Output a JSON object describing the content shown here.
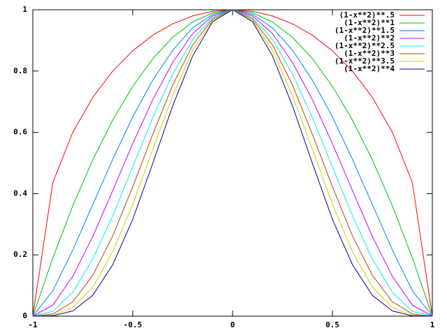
{
  "chart_data": {
    "type": "line",
    "x": [
      -1,
      -0.9,
      -0.8,
      -0.7,
      -0.6,
      -0.5,
      -0.4,
      -0.3,
      -0.2,
      -0.1,
      0,
      0.1,
      0.2,
      0.3,
      0.4,
      0.5,
      0.6,
      0.7,
      0.8,
      0.9,
      1
    ],
    "series": [
      {
        "name": "(1-x**2)**.5",
        "color": "#ff0000",
        "values": [
          0,
          0.436,
          0.6,
          0.714,
          0.8,
          0.866,
          0.917,
          0.954,
          0.98,
          0.995,
          1,
          0.995,
          0.98,
          0.954,
          0.917,
          0.866,
          0.8,
          0.714,
          0.6,
          0.436,
          0
        ]
      },
      {
        "name": "(1-x**2)**1",
        "color": "#00c000",
        "values": [
          0,
          0.19,
          0.36,
          0.51,
          0.64,
          0.75,
          0.84,
          0.91,
          0.96,
          0.99,
          1,
          0.99,
          0.96,
          0.91,
          0.84,
          0.75,
          0.64,
          0.51,
          0.36,
          0.19,
          0
        ]
      },
      {
        "name": "(1-x**2)**1.5",
        "color": "#0080ff",
        "values": [
          0,
          0.083,
          0.216,
          0.364,
          0.512,
          0.65,
          0.77,
          0.868,
          0.941,
          0.985,
          1,
          0.985,
          0.941,
          0.868,
          0.77,
          0.65,
          0.512,
          0.364,
          0.216,
          0.083,
          0
        ]
      },
      {
        "name": "(1-x**2)**2",
        "color": "#c000ff",
        "values": [
          0,
          0.036,
          0.13,
          0.26,
          0.41,
          0.563,
          0.706,
          0.828,
          0.922,
          0.98,
          1,
          0.98,
          0.922,
          0.828,
          0.706,
          0.563,
          0.41,
          0.26,
          0.13,
          0.036,
          0
        ]
      },
      {
        "name": "(1-x**2)**2.5",
        "color": "#00eeee",
        "values": [
          0,
          0.016,
          0.078,
          0.186,
          0.328,
          0.487,
          0.647,
          0.79,
          0.903,
          0.975,
          1,
          0.975,
          0.903,
          0.79,
          0.647,
          0.487,
          0.328,
          0.186,
          0.078,
          0.016,
          0
        ]
      },
      {
        "name": "(1-x**2)**3",
        "color": "#c04000",
        "values": [
          0,
          0.007,
          0.047,
          0.133,
          0.262,
          0.422,
          0.593,
          0.754,
          0.885,
          0.97,
          1,
          0.97,
          0.885,
          0.754,
          0.593,
          0.422,
          0.262,
          0.133,
          0.047,
          0.007,
          0
        ]
      },
      {
        "name": "(1-x**2)**3.5",
        "color": "#d0d000",
        "values": [
          0,
          0.003,
          0.028,
          0.095,
          0.21,
          0.365,
          0.544,
          0.719,
          0.867,
          0.965,
          1,
          0.965,
          0.867,
          0.719,
          0.544,
          0.365,
          0.21,
          0.095,
          0.028,
          0.003,
          0
        ]
      },
      {
        "name": "(1-x**2)**4",
        "color": "#0000a0",
        "values": [
          0,
          0.001,
          0.017,
          0.068,
          0.168,
          0.316,
          0.498,
          0.686,
          0.849,
          0.961,
          1,
          0.961,
          0.849,
          0.686,
          0.498,
          0.316,
          0.168,
          0.068,
          0.017,
          0.001,
          0
        ]
      }
    ],
    "xlim": [
      -1,
      1
    ],
    "xticks": [
      -1,
      -0.5,
      0,
      0.5,
      1
    ],
    "ylim": [
      0,
      1
    ],
    "yticks": [
      0,
      0.2,
      0.4,
      0.6,
      0.8,
      1
    ],
    "grid": false,
    "legend": "top-right"
  }
}
